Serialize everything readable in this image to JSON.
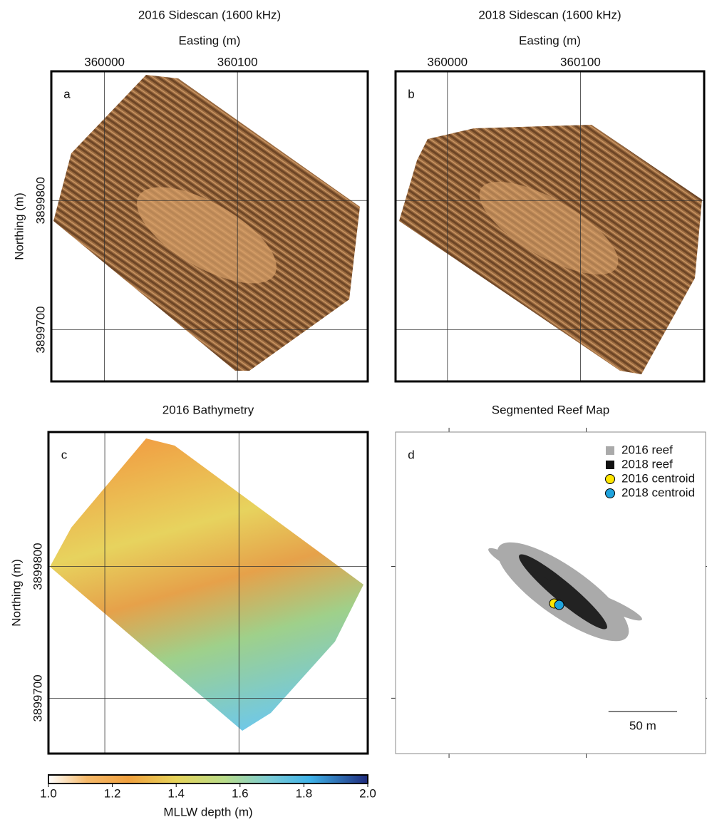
{
  "chart_data": [
    {
      "type": "map",
      "panel": "a",
      "title": "2016 Sidescan (1600 kHz)",
      "xlabel": "Easting (m)",
      "ylabel": "Northing (m)",
      "xlim": [
        359960,
        360198
      ],
      "ylim": [
        3899660,
        3899900
      ],
      "xticks": [
        360000,
        360100
      ],
      "yticks": [
        3899700,
        3899800
      ],
      "grid": true,
      "xtick_labels": true,
      "ytick_labels": true
    },
    {
      "type": "map",
      "panel": "b",
      "title": "2018 Sidescan (1600 kHz)",
      "xlabel": "Easting (m)",
      "xlim": [
        359961,
        360193
      ],
      "ylim": [
        3899660,
        3899900
      ],
      "xticks": [
        360000,
        360100
      ],
      "yticks": [
        3899700,
        3899800
      ],
      "grid": true,
      "xtick_labels": true,
      "ytick_labels": false
    },
    {
      "type": "map",
      "panel": "c",
      "title": "2016 Bathymetry",
      "ylabel": "Northing (m)",
      "xlim": [
        359958,
        360196
      ],
      "ylim": [
        3899658,
        3899902
      ],
      "xticks": [
        360000,
        360100
      ],
      "yticks": [
        3899700,
        3899800
      ],
      "grid": true,
      "xtick_labels": false,
      "ytick_labels": true,
      "colorbar": {
        "label": "MLLW depth (m)",
        "lim": [
          1.0,
          2.0
        ],
        "ticks": [
          {
            "value": 1.0,
            "label": "1.0"
          },
          {
            "value": 1.2,
            "label": "1.2"
          },
          {
            "value": 1.4,
            "label": "1.4"
          },
          {
            "value": 1.6,
            "label": "1.6"
          },
          {
            "value": 1.8,
            "label": "1.8"
          },
          {
            "value": 2.0,
            "label": "2.0"
          }
        ]
      }
    },
    {
      "type": "map",
      "panel": "d",
      "title": "Segmented Reef Map",
      "xlim": [
        359961,
        360187
      ],
      "ylim": [
        3899658,
        3899902
      ],
      "xticks": [
        360000,
        360100
      ],
      "yticks": [
        3899700,
        3899800
      ],
      "grid": false,
      "xtick_labels": false,
      "ytick_labels": false,
      "series": [
        {
          "name": "2016 reef",
          "color": "#aaaaaa",
          "marker": "square"
        },
        {
          "name": "2018 reef",
          "color": "#111111",
          "marker": "square"
        },
        {
          "name": "2016 centroid",
          "color": "#ffe600",
          "marker": "circle",
          "x": [
            360076.6
          ],
          "values": [
            3899771.9
          ]
        },
        {
          "name": "2018 centroid",
          "color": "#1fa3dd",
          "marker": "circle",
          "x": [
            360080.3
          ],
          "values": [
            3899770.8
          ]
        }
      ],
      "scale_bar": {
        "length": 50,
        "label": "50 m"
      }
    }
  ]
}
